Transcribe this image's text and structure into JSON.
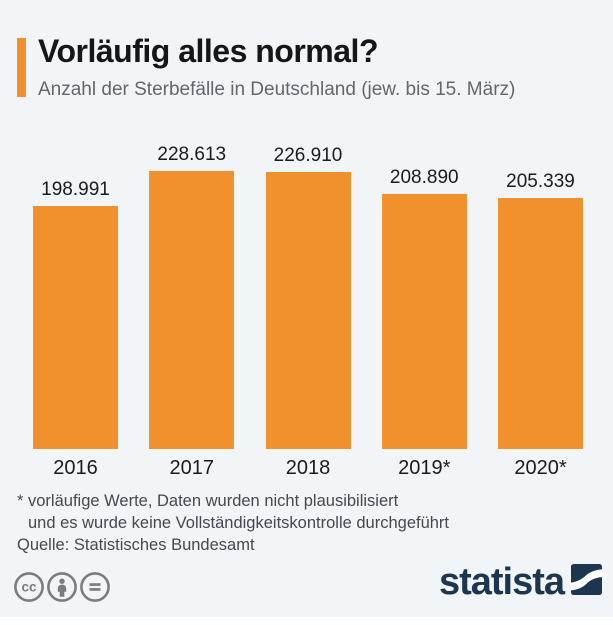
{
  "page": {
    "background_color": "#f1f5f8",
    "accent_color": "#f0912d"
  },
  "header": {
    "title": "Vorläufig alles normal?",
    "subtitle": "Anzahl der Sterbefälle in Deutschland (jew. bis 15. März)"
  },
  "chart_data": {
    "type": "bar",
    "title": "Vorläufig alles normal?",
    "subtitle": "Anzahl der Sterbefälle in Deutschland (jew. bis 15. März)",
    "categories": [
      "2016",
      "2017",
      "2018",
      "2019*",
      "2020*"
    ],
    "values": [
      198991,
      228613,
      226910,
      208890,
      205339
    ],
    "value_labels": [
      "198.991",
      "228.613",
      "226.910",
      "208.890",
      "205.339"
    ],
    "bar_color": "#f0912d",
    "ylim": [
      0,
      228613
    ],
    "grid": false,
    "legend": "none",
    "value_labels_position": "above-bars",
    "category_labels_position": "below-bars"
  },
  "footnotes": {
    "line1": "* vorläufige Werte, Daten wurden nicht plausibilisiert",
    "line2": "und es wurde keine Vollständigkeitskontrolle durchgeführt",
    "source": "Quelle: Statistisches Bundesamt"
  },
  "footer": {
    "license_icons": [
      "cc-license-icon",
      "cc-attribution-icon",
      "cc-nd-icon"
    ],
    "icon_color": "#7c7c7c",
    "logo_text": "statista",
    "logo_color": "#1d3650"
  }
}
